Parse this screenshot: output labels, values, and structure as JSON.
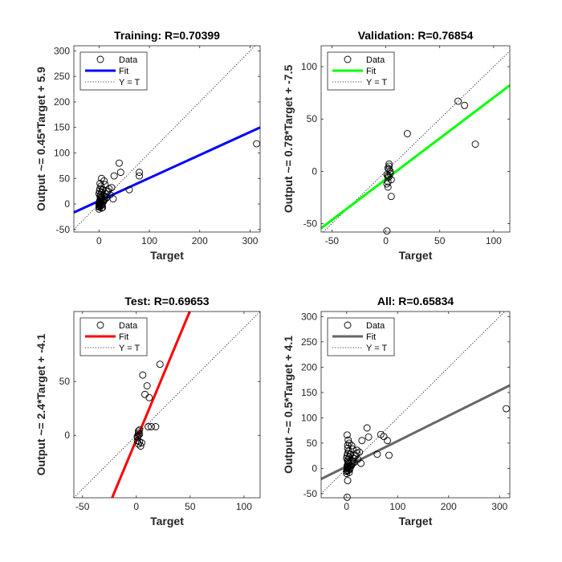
{
  "chart_data": [
    {
      "type": "scatter",
      "title": "Training: R=0.70399",
      "xlabel": "Target",
      "ylabel": "Output ~= 0.45*Target + 5.9",
      "xlim": [
        -50,
        320
      ],
      "ylim": [
        -55,
        310
      ],
      "xticks": [
        0,
        100,
        200,
        300
      ],
      "yticks": [
        -50,
        0,
        50,
        100,
        150,
        200,
        250,
        300
      ],
      "fit": {
        "slope": 0.45,
        "intercept": 5.9,
        "color": "#0000ff"
      },
      "legend": {
        "position": "top-left",
        "entries": [
          "Data",
          "Fit",
          "Y = T"
        ]
      },
      "series": [
        {
          "name": "Data",
          "marker": "circle",
          "x": [
            0,
            1,
            2,
            3,
            1,
            2,
            4,
            5,
            0,
            1,
            3,
            2,
            0,
            1,
            2,
            6,
            8,
            10,
            3,
            5,
            7,
            12,
            15,
            4,
            2,
            1,
            0,
            3,
            6,
            9,
            11,
            14,
            18,
            20,
            22,
            25,
            28,
            5,
            8,
            10,
            12,
            15,
            2,
            4,
            6,
            30,
            40,
            43,
            60,
            80,
            80,
            313,
            0,
            1,
            2,
            3,
            5,
            7,
            1,
            2
          ],
          "y": [
            -5,
            -3,
            0,
            2,
            5,
            8,
            10,
            -8,
            -10,
            3,
            12,
            15,
            20,
            25,
            30,
            -2,
            5,
            8,
            18,
            22,
            28,
            10,
            12,
            35,
            40,
            3,
            -6,
            -4,
            0,
            5,
            15,
            20,
            25,
            30,
            18,
            32,
            10,
            50,
            28,
            45,
            38,
            25,
            1,
            3,
            6,
            55,
            80,
            62,
            28,
            55,
            62,
            118,
            -2,
            2,
            6,
            9,
            14,
            -7,
            0,
            4
          ]
        }
      ]
    },
    {
      "type": "scatter",
      "title": "Validation: R=0.76854",
      "xlabel": "Target",
      "ylabel": "Output ~= 0.78*Target + -7.5",
      "xlim": [
        -60,
        115
      ],
      "ylim": [
        -58,
        120
      ],
      "xticks": [
        -50,
        0,
        50,
        100
      ],
      "yticks": [
        -50,
        0,
        50,
        100
      ],
      "fit": {
        "slope": 0.78,
        "intercept": -7.5,
        "color": "#00ff00"
      },
      "legend": {
        "position": "top-left",
        "entries": [
          "Data",
          "Fit",
          "Y = T"
        ]
      },
      "series": [
        {
          "name": "Data",
          "marker": "circle",
          "x": [
            2,
            3,
            1,
            4,
            2,
            3,
            5,
            1,
            2,
            4,
            3,
            2,
            1,
            5,
            20,
            67,
            73,
            83,
            3,
            2
          ],
          "y": [
            -10,
            -5,
            -3,
            0,
            3,
            5,
            -8,
            -12,
            -6,
            -2,
            2,
            -4,
            -57,
            -24,
            36,
            67,
            63,
            26,
            7,
            -15
          ]
        }
      ]
    },
    {
      "type": "scatter",
      "title": "Test: R=0.69653",
      "xlabel": "Target",
      "ylabel": "Output ~= 2.4*Target + -4.1",
      "xlim": [
        -58,
        115
      ],
      "ylim": [
        -58,
        115
      ],
      "xticks": [
        -50,
        0,
        50,
        100
      ],
      "yticks": [
        0,
        50
      ],
      "fit": {
        "slope": 2.4,
        "intercept": -4.1,
        "color": "#ff0000"
      },
      "legend": {
        "position": "top-left",
        "entries": [
          "Data",
          "Fit",
          "Y = T"
        ]
      },
      "series": [
        {
          "name": "Data",
          "marker": "circle",
          "x": [
            1,
            2,
            3,
            2,
            1,
            4,
            3,
            2,
            5,
            6,
            8,
            10,
            12,
            14,
            18,
            22,
            11,
            2,
            1,
            3
          ],
          "y": [
            -2,
            2,
            5,
            -8,
            -5,
            -10,
            -6,
            0,
            -7,
            56,
            38,
            46,
            35,
            8,
            8,
            66,
            8,
            4,
            -1,
            1
          ]
        }
      ]
    },
    {
      "type": "scatter",
      "title": "All: R=0.65834",
      "xlabel": "Target",
      "ylabel": "Output ~= 0.5*Target + 4.1",
      "xlim": [
        -50,
        320
      ],
      "ylim": [
        -58,
        310
      ],
      "xticks": [
        0,
        100,
        200,
        300
      ],
      "yticks": [
        -50,
        0,
        50,
        100,
        150,
        200,
        250,
        300
      ],
      "fit": {
        "slope": 0.5,
        "intercept": 4.1,
        "color": "#666666"
      },
      "legend": {
        "position": "top-left",
        "entries": [
          "Data",
          "Fit",
          "Y = T"
        ]
      },
      "series": [
        {
          "name": "Data",
          "marker": "circle",
          "x": [
            0,
            1,
            2,
            3,
            1,
            2,
            4,
            5,
            0,
            1,
            3,
            2,
            0,
            1,
            2,
            6,
            8,
            10,
            3,
            5,
            7,
            12,
            15,
            4,
            2,
            1,
            0,
            3,
            6,
            9,
            11,
            14,
            18,
            20,
            22,
            25,
            28,
            5,
            8,
            10,
            12,
            15,
            2,
            4,
            6,
            30,
            40,
            43,
            60,
            67,
            73,
            80,
            83,
            313,
            1,
            2,
            3,
            20,
            2,
            1
          ],
          "y": [
            -5,
            -3,
            0,
            2,
            5,
            8,
            10,
            -8,
            -10,
            3,
            12,
            15,
            20,
            25,
            30,
            -2,
            5,
            8,
            18,
            22,
            28,
            10,
            12,
            35,
            40,
            3,
            -6,
            -4,
            0,
            5,
            15,
            20,
            25,
            30,
            18,
            32,
            10,
            50,
            28,
            45,
            38,
            25,
            1,
            3,
            6,
            55,
            80,
            62,
            28,
            67,
            63,
            55,
            26,
            118,
            -57,
            -24,
            56,
            36,
            46,
            66
          ]
        }
      ]
    }
  ]
}
